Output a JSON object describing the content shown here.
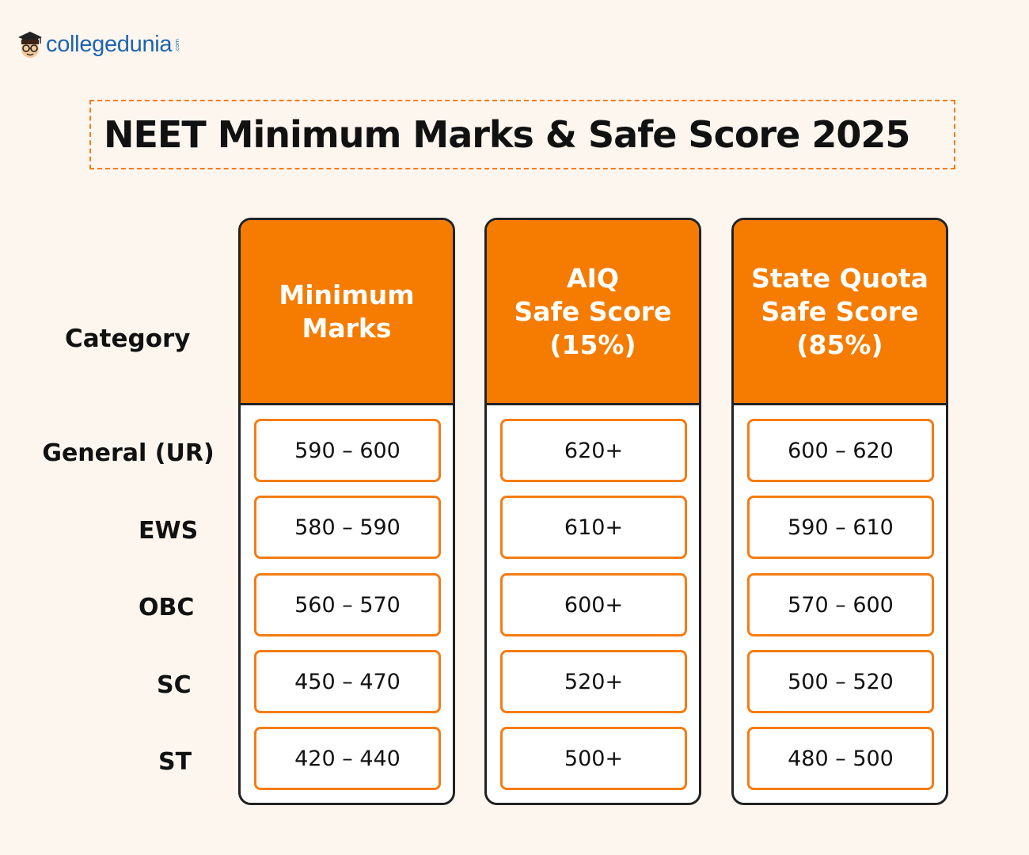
{
  "brand": {
    "name": "collegedunia",
    "suffix": ".com",
    "icon": "graduate-mascot-icon",
    "color": "#1d64b0"
  },
  "title": "NEET Minimum Marks & Safe Score 2025",
  "accent_color": "#f57c00",
  "table": {
    "category_header": "Category",
    "columns": [
      {
        "lines": [
          "Minimum",
          "Marks"
        ]
      },
      {
        "lines": [
          "AIQ",
          "Safe Score",
          "(15%)"
        ]
      },
      {
        "lines": [
          "State Quota",
          "Safe Score",
          "(85%)"
        ]
      }
    ],
    "rows": [
      {
        "category": "General (UR)",
        "values": [
          "590 – 600",
          "620+",
          "600 – 620"
        ]
      },
      {
        "category": "EWS",
        "values": [
          "580 – 590",
          "610+",
          "590 – 610"
        ]
      },
      {
        "category": "OBC",
        "values": [
          "560 – 570",
          "600+",
          "570 – 600"
        ]
      },
      {
        "category": "SC",
        "values": [
          "450 – 470",
          "520+",
          "500 – 520"
        ]
      },
      {
        "category": "ST",
        "values": [
          "420 – 440",
          "500+",
          "480 – 500"
        ]
      }
    ]
  }
}
